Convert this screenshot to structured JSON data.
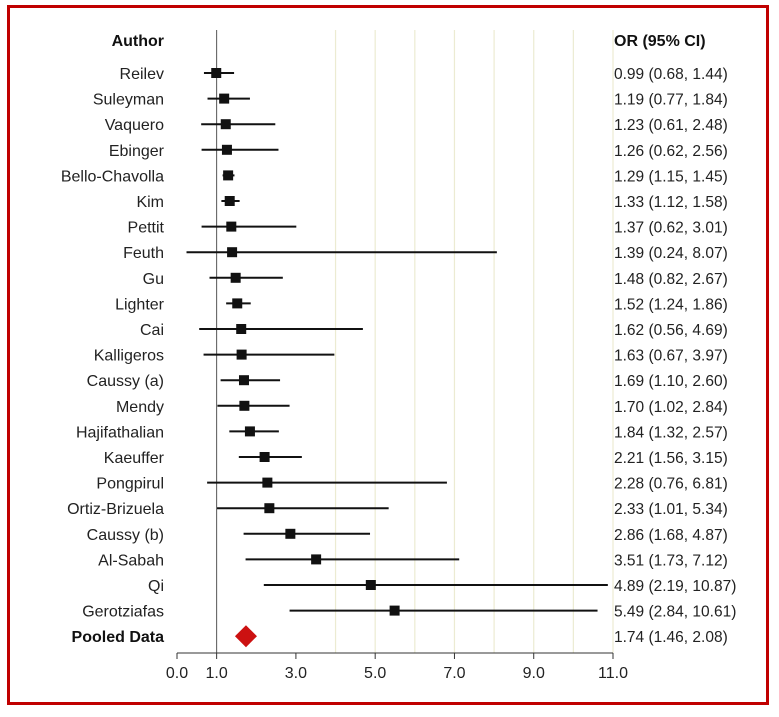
{
  "chart_data": {
    "type": "forest",
    "headers": {
      "left": "Author",
      "right": "OR (95% CI)"
    },
    "xlim": [
      0,
      11
    ],
    "reference_line": 1.0,
    "xticks": [
      0.0,
      1.0,
      3.0,
      5.0,
      7.0,
      9.0,
      11.0
    ],
    "xtick_labels": [
      "0.0",
      "1.0",
      "3.0",
      "5.0",
      "7.0",
      "9.0",
      "11.0"
    ],
    "gridlines": [
      4.0,
      5.0,
      6.0,
      7.0,
      8.0,
      9.0,
      10.0,
      11.0
    ],
    "studies": [
      {
        "author": "Reilev",
        "or": 0.99,
        "lo": 0.68,
        "hi": 1.44,
        "label": "0.99 (0.68, 1.44)"
      },
      {
        "author": "Suleyman",
        "or": 1.19,
        "lo": 0.77,
        "hi": 1.84,
        "label": "1.19 (0.77, 1.84)"
      },
      {
        "author": "Vaquero",
        "or": 1.23,
        "lo": 0.61,
        "hi": 2.48,
        "label": "1.23 (0.61, 2.48)"
      },
      {
        "author": "Ebinger",
        "or": 1.26,
        "lo": 0.62,
        "hi": 2.56,
        "label": "1.26 (0.62, 2.56)"
      },
      {
        "author": "Bello-Chavolla",
        "or": 1.29,
        "lo": 1.15,
        "hi": 1.45,
        "label": "1.29 (1.15, 1.45)"
      },
      {
        "author": "Kim",
        "or": 1.33,
        "lo": 1.12,
        "hi": 1.58,
        "label": "1.33 (1.12, 1.58)"
      },
      {
        "author": "Pettit",
        "or": 1.37,
        "lo": 0.62,
        "hi": 3.01,
        "label": "1.37 (0.62, 3.01)"
      },
      {
        "author": "Feuth",
        "or": 1.39,
        "lo": 0.24,
        "hi": 8.07,
        "label": "1.39 (0.24, 8.07)"
      },
      {
        "author": "Gu",
        "or": 1.48,
        "lo": 0.82,
        "hi": 2.67,
        "label": "1.48 (0.82, 2.67)"
      },
      {
        "author": "Lighter",
        "or": 1.52,
        "lo": 1.24,
        "hi": 1.86,
        "label": "1.52 (1.24, 1.86)"
      },
      {
        "author": "Cai",
        "or": 1.62,
        "lo": 0.56,
        "hi": 4.69,
        "label": "1.62 (0.56, 4.69)"
      },
      {
        "author": "Kalligeros",
        "or": 1.63,
        "lo": 0.67,
        "hi": 3.97,
        "label": "1.63 (0.67, 3.97)"
      },
      {
        "author": "Caussy (a)",
        "or": 1.69,
        "lo": 1.1,
        "hi": 2.6,
        "label": "1.69 (1.10, 2.60)"
      },
      {
        "author": "Mendy",
        "or": 1.7,
        "lo": 1.02,
        "hi": 2.84,
        "label": "1.70 (1.02, 2.84)"
      },
      {
        "author": "Hajifathalian",
        "or": 1.84,
        "lo": 1.32,
        "hi": 2.57,
        "label": "1.84 (1.32, 2.57)"
      },
      {
        "author": "Kaeuffer",
        "or": 2.21,
        "lo": 1.56,
        "hi": 3.15,
        "label": "2.21 (1.56, 3.15)"
      },
      {
        "author": "Pongpirul",
        "or": 2.28,
        "lo": 0.76,
        "hi": 6.81,
        "label": "2.28 (0.76, 6.81)"
      },
      {
        "author": "Ortiz-Brizuela",
        "or": 2.33,
        "lo": 1.01,
        "hi": 5.34,
        "label": "2.33 (1.01, 5.34)"
      },
      {
        "author": "Caussy (b)",
        "or": 2.86,
        "lo": 1.68,
        "hi": 4.87,
        "label": "2.86 (1.68, 4.87)"
      },
      {
        "author": "Al-Sabah",
        "or": 3.51,
        "lo": 1.73,
        "hi": 7.12,
        "label": "3.51 (1.73, 7.12)"
      },
      {
        "author": "Qi",
        "or": 4.89,
        "lo": 2.19,
        "hi": 10.87,
        "label": "4.89 (2.19, 10.87)"
      },
      {
        "author": "Gerotziafas",
        "or": 5.49,
        "lo": 2.84,
        "hi": 10.61,
        "label": "5.49 (2.84, 10.61)"
      }
    ],
    "pooled": {
      "author": "Pooled Data",
      "or": 1.74,
      "lo": 1.46,
      "hi": 2.08,
      "label": "1.74 (1.46, 2.08)"
    },
    "colors": {
      "frame": "#c00000",
      "marker": "#111111",
      "ci_line": "#111111",
      "pooled_diamond": "#cc1111",
      "gridline": "#ecebd2",
      "reference_line": "#555555"
    }
  }
}
